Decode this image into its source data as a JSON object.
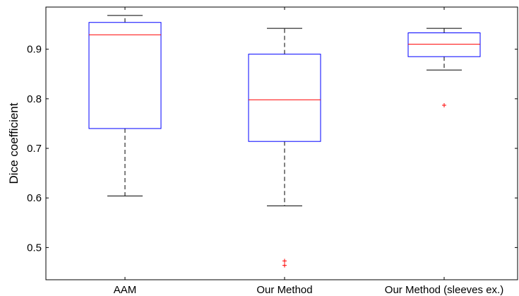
{
  "chart_data": {
    "type": "boxplot",
    "title": "",
    "xlabel": "",
    "ylabel": "Dice coefficient",
    "ylim": [
      0.435,
      0.985
    ],
    "yticks": [
      0.5,
      0.6,
      0.7,
      0.8,
      0.9
    ],
    "ytick_labels": [
      "0.5",
      "0.6",
      "0.7",
      "0.8",
      "0.9"
    ],
    "grid": false,
    "legend": "none",
    "categories": [
      "AAM",
      "Our Method",
      "Our Method (sleeves ex.)"
    ],
    "boxes": [
      {
        "category": "AAM",
        "whisker_low": 0.604,
        "q1": 0.74,
        "median": 0.929,
        "q3": 0.954,
        "whisker_high": 0.968,
        "outliers": []
      },
      {
        "category": "Our Method",
        "whisker_low": 0.584,
        "q1": 0.714,
        "median": 0.798,
        "q3": 0.89,
        "whisker_high": 0.942,
        "outliers": [
          0.473,
          0.464
        ]
      },
      {
        "category": "Our Method (sleeves ex.)",
        "whisker_low": 0.858,
        "q1": 0.885,
        "median": 0.91,
        "q3": 0.933,
        "whisker_high": 0.942,
        "outliers": [
          0.787
        ]
      }
    ],
    "colors": {
      "box": "#0000ff",
      "median": "#ff0000",
      "whisker": "#000000",
      "outlier": "#ff0000",
      "axes": "#000000"
    }
  }
}
